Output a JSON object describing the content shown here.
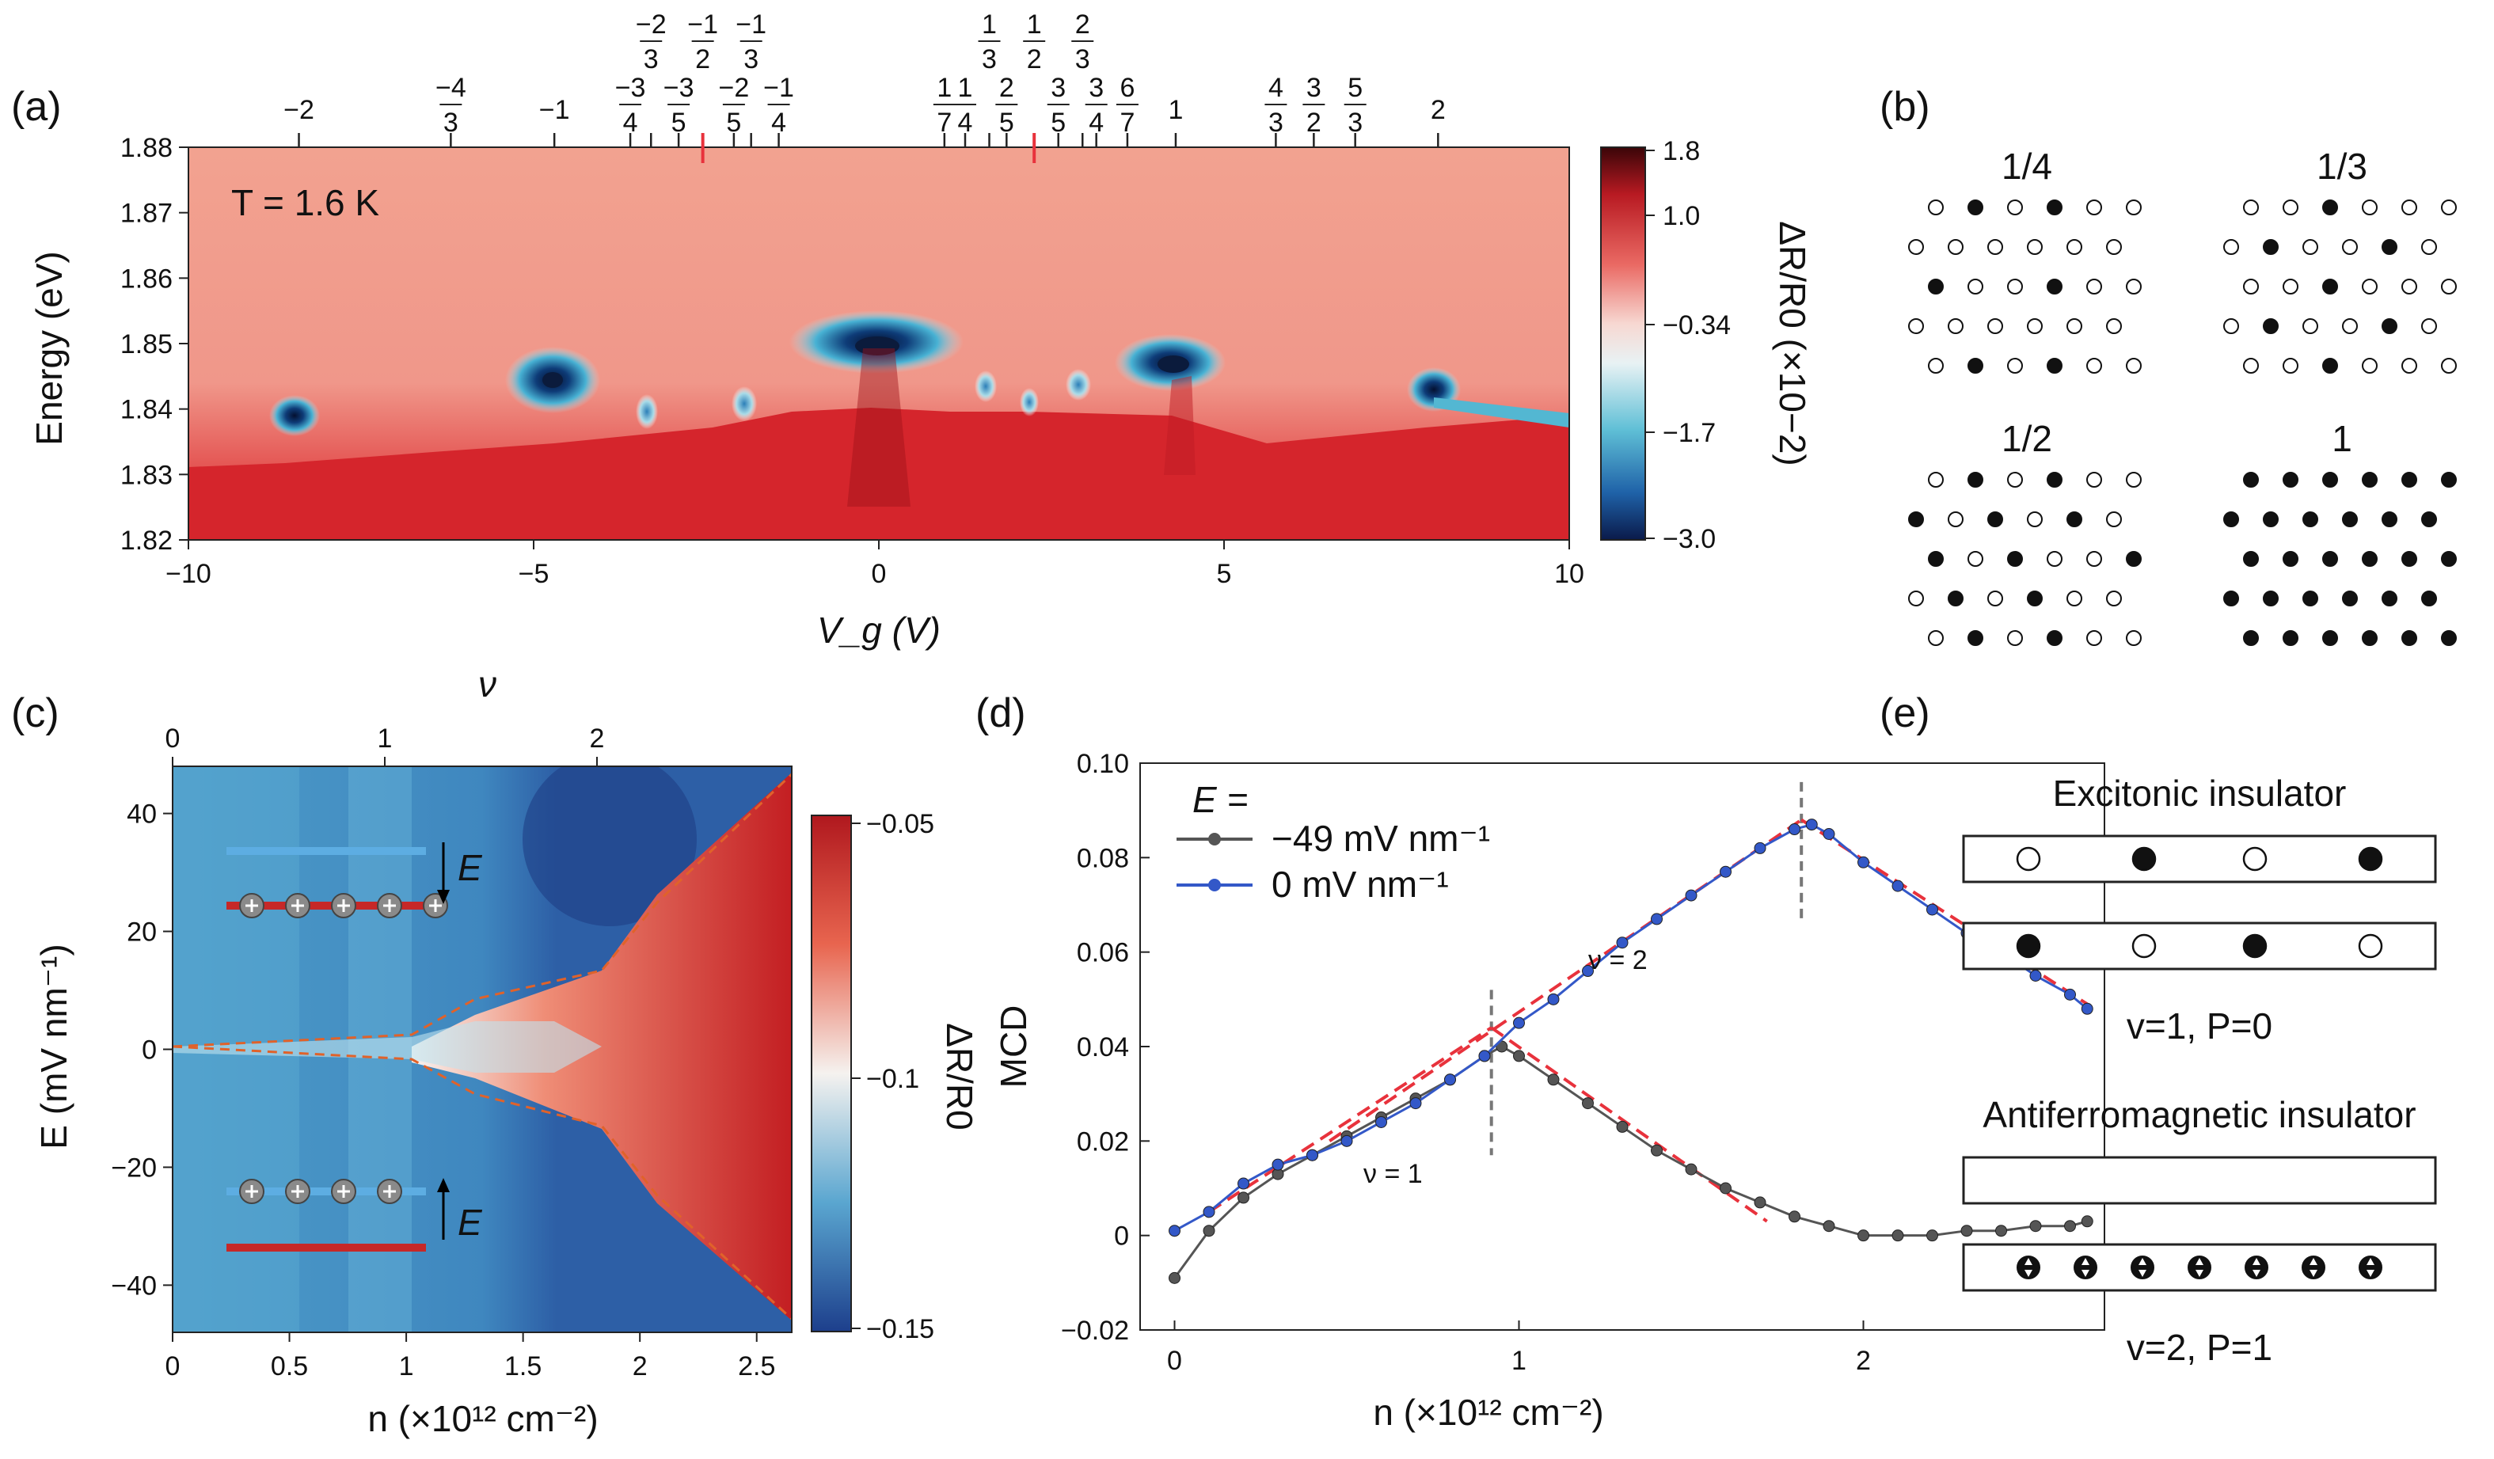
{
  "panels": {
    "a": {
      "label": "(a)",
      "temperature": "T = 1.6 K",
      "xlabel": "V_g (V)",
      "ylabel": "Energy (eV)",
      "x_ticks": [
        "−10",
        "−5",
        "0",
        "5",
        "10"
      ],
      "y_ticks": [
        "1.88",
        "1.87",
        "1.86",
        "1.85",
        "1.84",
        "1.83",
        "1.82"
      ],
      "colorbar_label": "ΔR/R0 (×10−2)",
      "colorbar_ticks": [
        "1.8",
        "1.0",
        "−0.34",
        "−1.7",
        "−3.0"
      ],
      "top_fillings": [
        {
          "num": "−2",
          "den": "",
          "v": -8.4
        },
        {
          "num": "−4",
          "den": "3",
          "v": -6.2
        },
        {
          "num": "−1",
          "den": "",
          "v": -4.7
        },
        {
          "num": "−3",
          "den": "4",
          "v": -3.6
        },
        {
          "num": "−2",
          "den": "3",
          "v": -3.3
        },
        {
          "num": "−3",
          "den": "5",
          "v": -2.9
        },
        {
          "num": "−1",
          "den": "2",
          "v": -2.55
        },
        {
          "num": "−2",
          "den": "5",
          "v": -2.1
        },
        {
          "num": "−1",
          "den": "3",
          "v": -1.85
        },
        {
          "num": "−1",
          "den": "4",
          "v": -1.45
        },
        {
          "num": "1",
          "den": "7",
          "v": 0.95
        },
        {
          "num": "1",
          "den": "4",
          "v": 1.25
        },
        {
          "num": "1",
          "den": "3",
          "v": 1.6
        },
        {
          "num": "2",
          "den": "5",
          "v": 1.85
        },
        {
          "num": "1",
          "den": "2",
          "v": 2.25
        },
        {
          "num": "3",
          "den": "5",
          "v": 2.6
        },
        {
          "num": "2",
          "den": "3",
          "v": 2.95
        },
        {
          "num": "3",
          "den": "4",
          "v": 3.15
        },
        {
          "num": "6",
          "den": "7",
          "v": 3.6
        },
        {
          "num": "1",
          "den": "",
          "v": 4.3
        },
        {
          "num": "4",
          "den": "3",
          "v": 5.75
        },
        {
          "num": "3",
          "den": "2",
          "v": 6.3
        },
        {
          "num": "5",
          "den": "3",
          "v": 6.9
        },
        {
          "num": "2",
          "den": "",
          "v": 8.1
        }
      ]
    },
    "b": {
      "label": "(b)",
      "lattices": [
        {
          "title": "1/4",
          "filled": [
            [
              0,
              1
            ],
            [
              0,
              3
            ],
            [
              2,
              0
            ],
            [
              2,
              3
            ],
            [
              4,
              1
            ],
            [
              4,
              3
            ]
          ]
        },
        {
          "title": "1/3",
          "filled": [
            [
              0,
              2
            ],
            [
              1,
              1
            ],
            [
              1,
              4
            ],
            [
              2,
              2
            ],
            [
              3,
              1
            ],
            [
              3,
              4
            ],
            [
              4,
              2
            ]
          ]
        },
        {
          "title": "1/2",
          "filled": [
            [
              0,
              1
            ],
            [
              0,
              3
            ],
            [
              1,
              0
            ],
            [
              1,
              2
            ],
            [
              1,
              4
            ],
            [
              2,
              0
            ],
            [
              2,
              2
            ],
            [
              2,
              5
            ],
            [
              3,
              1
            ],
            [
              3,
              3
            ],
            [
              4,
              1
            ],
            [
              4,
              3
            ]
          ]
        },
        {
          "title": "1",
          "filled": "all"
        }
      ]
    },
    "c": {
      "label": "(c)",
      "top_axis_label": "ν",
      "top_ticks": [
        "0",
        "1",
        "2"
      ],
      "xlabel": "n (×10¹² cm⁻²)",
      "ylabel": "E (mV nm⁻¹)",
      "x_ticks": [
        "0",
        "0.5",
        "1",
        "1.5",
        "2",
        "2.5"
      ],
      "y_ticks": [
        "40",
        "20",
        "0",
        "−20",
        "−40"
      ],
      "colorbar_label": "ΔR/R0",
      "colorbar_ticks": [
        "−0.05",
        "−0.1",
        "−0.15"
      ],
      "field_label": "E"
    },
    "d": {
      "label": "(d)",
      "legend_title": "E =",
      "xlabel": "n (×10¹² cm⁻²)",
      "ylabel": "MCD",
      "x_ticks": [
        "0",
        "1",
        "2"
      ],
      "y_ticks": [
        "0.10",
        "0.08",
        "0.06",
        "0.04",
        "0.02",
        "0",
        "−0.02"
      ],
      "nu1": "ν = 1",
      "nu2": "ν = 2",
      "colors": {
        "black": "#555555",
        "blue": "#3358c8",
        "fit": "#e8323c"
      }
    },
    "e": {
      "label": "(e)",
      "title1": "Excitonic  insulator",
      "caption1": "v=1,  P=0",
      "title2": "Antiferromagnetic  insulator",
      "caption2": "v=2,  P=1"
    }
  },
  "chart_data": [
    {
      "type": "line",
      "panel": "d",
      "xlabel": "n (×10¹² cm⁻²)",
      "ylabel": "MCD",
      "xlim": [
        -0.1,
        2.7
      ],
      "ylim": [
        -0.02,
        0.1
      ],
      "series": [
        {
          "name": "−49 mV nm⁻¹",
          "x": [
            0,
            0.1,
            0.2,
            0.3,
            0.4,
            0.5,
            0.6,
            0.7,
            0.8,
            0.9,
            0.95,
            1.0,
            1.1,
            1.2,
            1.3,
            1.4,
            1.5,
            1.6,
            1.7,
            1.8,
            1.9,
            2.0,
            2.1,
            2.2,
            2.3,
            2.4,
            2.5,
            2.6,
            2.65
          ],
          "y": [
            -0.009,
            0.001,
            0.008,
            0.013,
            0.017,
            0.021,
            0.025,
            0.029,
            0.033,
            0.038,
            0.04,
            0.038,
            0.033,
            0.028,
            0.023,
            0.018,
            0.014,
            0.01,
            0.007,
            0.004,
            0.002,
            0.0,
            0.0,
            0.0,
            0.001,
            0.001,
            0.002,
            0.002,
            0.003
          ]
        },
        {
          "name": "0 mV nm⁻¹",
          "x": [
            0,
            0.1,
            0.2,
            0.3,
            0.4,
            0.5,
            0.6,
            0.7,
            0.8,
            0.9,
            1.0,
            1.1,
            1.2,
            1.3,
            1.4,
            1.5,
            1.6,
            1.7,
            1.8,
            1.85,
            1.9,
            2.0,
            2.1,
            2.2,
            2.3,
            2.4,
            2.5,
            2.6,
            2.65
          ],
          "y": [
            0.001,
            0.005,
            0.011,
            0.015,
            0.017,
            0.02,
            0.024,
            0.028,
            0.033,
            0.038,
            0.045,
            0.05,
            0.056,
            0.062,
            0.067,
            0.072,
            0.077,
            0.082,
            0.086,
            0.087,
            0.085,
            0.079,
            0.074,
            0.069,
            0.064,
            0.06,
            0.055,
            0.051,
            0.048
          ]
        }
      ]
    }
  ]
}
